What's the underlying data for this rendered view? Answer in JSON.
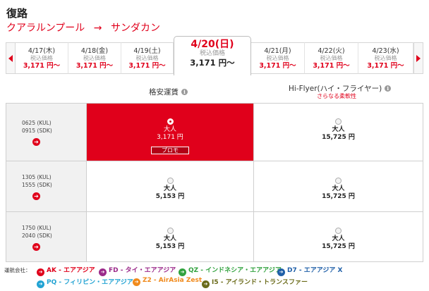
{
  "title": "復路",
  "route": {
    "origin": "クアラルンプール",
    "arrow": "→",
    "destination": "サンダカン"
  },
  "dates": [
    {
      "date": "4/17(木)",
      "label": "税込価格",
      "price": "3,171 円～"
    },
    {
      "date": "4/18(金)",
      "label": "税込価格",
      "price": "3,171 円～"
    },
    {
      "date": "4/19(土)",
      "label": "税込価格",
      "price": "3,171 円～"
    },
    {
      "date": "4/20(日)",
      "label": "税込価格",
      "price": "3,171 円～"
    },
    {
      "date": "4/21(月)",
      "label": "税込価格",
      "price": "3,171 円～"
    },
    {
      "date": "4/22(火)",
      "label": "税込価格",
      "price": "3,171 円～"
    },
    {
      "date": "4/23(水)",
      "label": "税込価格",
      "price": "3,171 円～"
    }
  ],
  "columns": {
    "low": {
      "label": "格安運賃"
    },
    "hi": {
      "label": "Hi-Flyer(ハイ・フライヤー)",
      "sub": "さらなる柔軟性"
    }
  },
  "info_glyph": "i",
  "arrow_glyph": "➔",
  "flights": [
    {
      "dep": "0625 (KUL)",
      "arr": "0915 (SDK)",
      "low": {
        "pax": "大人",
        "amount": "3,171 円",
        "badge": "プロモ",
        "selected": true
      },
      "hi": {
        "pax": "大人",
        "amount": "15,725 円"
      }
    },
    {
      "dep": "1305 (KUL)",
      "arr": "1555 (SDK)",
      "low": {
        "pax": "大人",
        "amount": "5,153 円"
      },
      "hi": {
        "pax": "大人",
        "amount": "15,725 円"
      }
    },
    {
      "dep": "1750 (KUL)",
      "arr": "2040 (SDK)",
      "low": {
        "pax": "大人",
        "amount": "5,153 円"
      },
      "hi": {
        "pax": "大人",
        "amount": "15,725 円"
      }
    }
  ],
  "carriers": {
    "label": "運航会社：",
    "items": [
      {
        "name": "AK - エアアジア",
        "color": "#e0001b"
      },
      {
        "name": "FD - タイ・エアアジア",
        "color": "#9b2a8a"
      },
      {
        "name": "QZ - インドネシア・エアアジア",
        "color": "#31a23e"
      },
      {
        "name": "D7 - エアアジア X",
        "color": "#1f5fa8"
      },
      {
        "name": "PQ - フィリピン・エアアジア",
        "color": "#22a3d3"
      },
      {
        "name": "Z2 - AirAsia Zest",
        "color": "#f08a1c"
      },
      {
        "name": "I5 - アイランド・トランスファー",
        "color": "#6b6b1a"
      }
    ]
  }
}
